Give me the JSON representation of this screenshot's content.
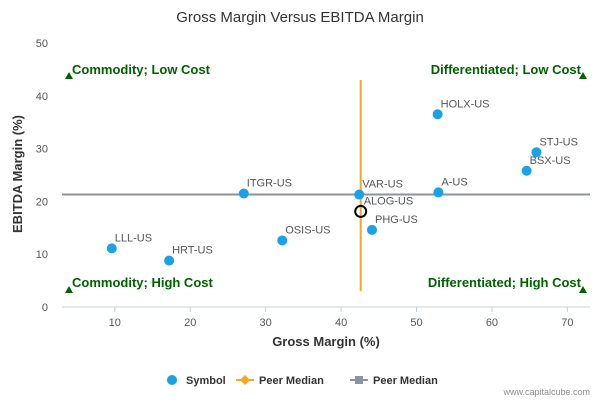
{
  "chart_data": {
    "type": "scatter",
    "title": "Gross Margin Versus EBITDA Margin",
    "xlabel": "Gross Margin (%)",
    "ylabel": "EBITDA Margin (%)",
    "xlim": [
      3,
      73
    ],
    "ylim": [
      0,
      50
    ],
    "x_ticks": [
      10,
      20,
      30,
      40,
      50,
      60,
      70
    ],
    "y_ticks": [
      0,
      10,
      20,
      30,
      40,
      50
    ],
    "grid": false,
    "legend_position": "bottom",
    "points": [
      {
        "label": "HOLX-US",
        "x": 52.8,
        "y": 36.5
      },
      {
        "label": "STJ-US",
        "x": 65.9,
        "y": 29.3
      },
      {
        "label": "BSX-US",
        "x": 64.6,
        "y": 25.8
      },
      {
        "label": "ITGR-US",
        "x": 27.1,
        "y": 21.5
      },
      {
        "label": "VAR-US",
        "x": 42.4,
        "y": 21.3
      },
      {
        "label": "A-US",
        "x": 52.9,
        "y": 21.7
      },
      {
        "label": "ALOG-US",
        "x": 42.6,
        "y": 18.1,
        "highlight": true
      },
      {
        "label": "PHG-US",
        "x": 44.1,
        "y": 14.6
      },
      {
        "label": "OSIS-US",
        "x": 32.2,
        "y": 12.6
      },
      {
        "label": "LLL-US",
        "x": 9.6,
        "y": 11.1
      },
      {
        "label": "HRT-US",
        "x": 17.2,
        "y": 8.8
      }
    ],
    "peer_median_x": 42.6,
    "peer_median_x_range": [
      3,
      43
    ],
    "peer_median_y": 21.3,
    "quadrant_labels": [
      {
        "text": "Commodity; Low Cost",
        "corner": "top-left"
      },
      {
        "text": "Differentiated; Low Cost",
        "corner": "top-right"
      },
      {
        "text": "Commodity; High Cost",
        "corner": "bottom-left"
      },
      {
        "text": "Differentiated; High Cost",
        "corner": "bottom-right"
      }
    ],
    "legend": [
      {
        "name": "Symbol",
        "marker": "circle",
        "color": "#1aa1e6"
      },
      {
        "name": "Peer Median",
        "marker": "diamond-line",
        "color": "#f5a623"
      },
      {
        "name": "Peer Median",
        "marker": "square-line",
        "color": "#8a93a6"
      }
    ],
    "colors": {
      "symbol": "#1aa1e6",
      "median_vertical": "#f5a623",
      "median_horizontal": "#8a93a6",
      "quadrant_label": "#006100",
      "axis_text": "#555555"
    }
  },
  "credit": "www.capitalcube.com"
}
